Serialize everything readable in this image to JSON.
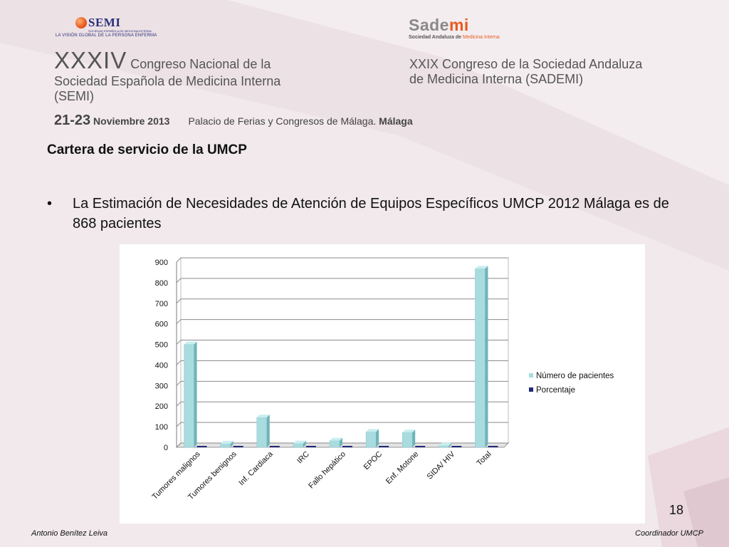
{
  "header": {
    "semi_logo_text": "SEMI",
    "semi_logo_small": "SOCIEDAD ESPAÑOLA DE MEDICINA INTERNA",
    "semi_tagline": "LA VISIÓN GLOBAL DE LA PERSONA ENFERMA",
    "sademi_logo_a": "Sade",
    "sademi_logo_b": "mi",
    "sademi_tagline_a": "Sociedad Andaluza de ",
    "sademi_tagline_b": "Medicina Interna",
    "left_roman": "XXXIV",
    "left_line1": " Congreso Nacional de la",
    "left_line2": "Sociedad Española de Medicina Interna",
    "left_line3": "(SEMI)",
    "right_line1": "XXIX Congreso de la Sociedad Andaluza",
    "right_line2": "de Medicina Interna (SADEMI)",
    "date_days": "21-23",
    "date_month": " Noviembre 2013",
    "venue": "Palacio de Ferias y Congresos de Málaga.",
    "venue_city": " Málaga"
  },
  "slide": {
    "title": "Cartera de servicio de la UMCP",
    "bullet_mark": "•",
    "bullet_text": "La Estimación de Necesidades de Atención de Equipos Específicos UMCP 2012 Málaga  es de 868 pacientes",
    "page_number": "18"
  },
  "footer": {
    "left": "Antonio Benítez Leiva",
    "right": "Coordinador UMCP"
  },
  "colors": {
    "series1": "#a8dcdf",
    "series1_side": "#6fb3b8",
    "series2": "#1f2a7a"
  },
  "chart_data": {
    "type": "bar",
    "categories": [
      "Tumores malignos",
      "Tumores benignos",
      "Inf. Cardiaca",
      "IRC",
      "Fallo hepático",
      "EPOC",
      "Enf. Motone",
      "SIDA/ HIV",
      "Total"
    ],
    "series": [
      {
        "name": "Número de pacientes",
        "values": [
          500,
          17,
          145,
          18,
          32,
          75,
          72,
          8,
          868
        ]
      },
      {
        "name": "Porcentaje",
        "values": [
          0,
          0,
          0,
          0,
          0,
          0,
          0,
          0,
          0
        ]
      }
    ],
    "y_ticks": [
      "0",
      "100",
      "200",
      "300",
      "400",
      "500",
      "600",
      "700",
      "800",
      "900"
    ],
    "ylim": [
      0,
      900
    ],
    "grid": true,
    "legend_position": "right"
  }
}
